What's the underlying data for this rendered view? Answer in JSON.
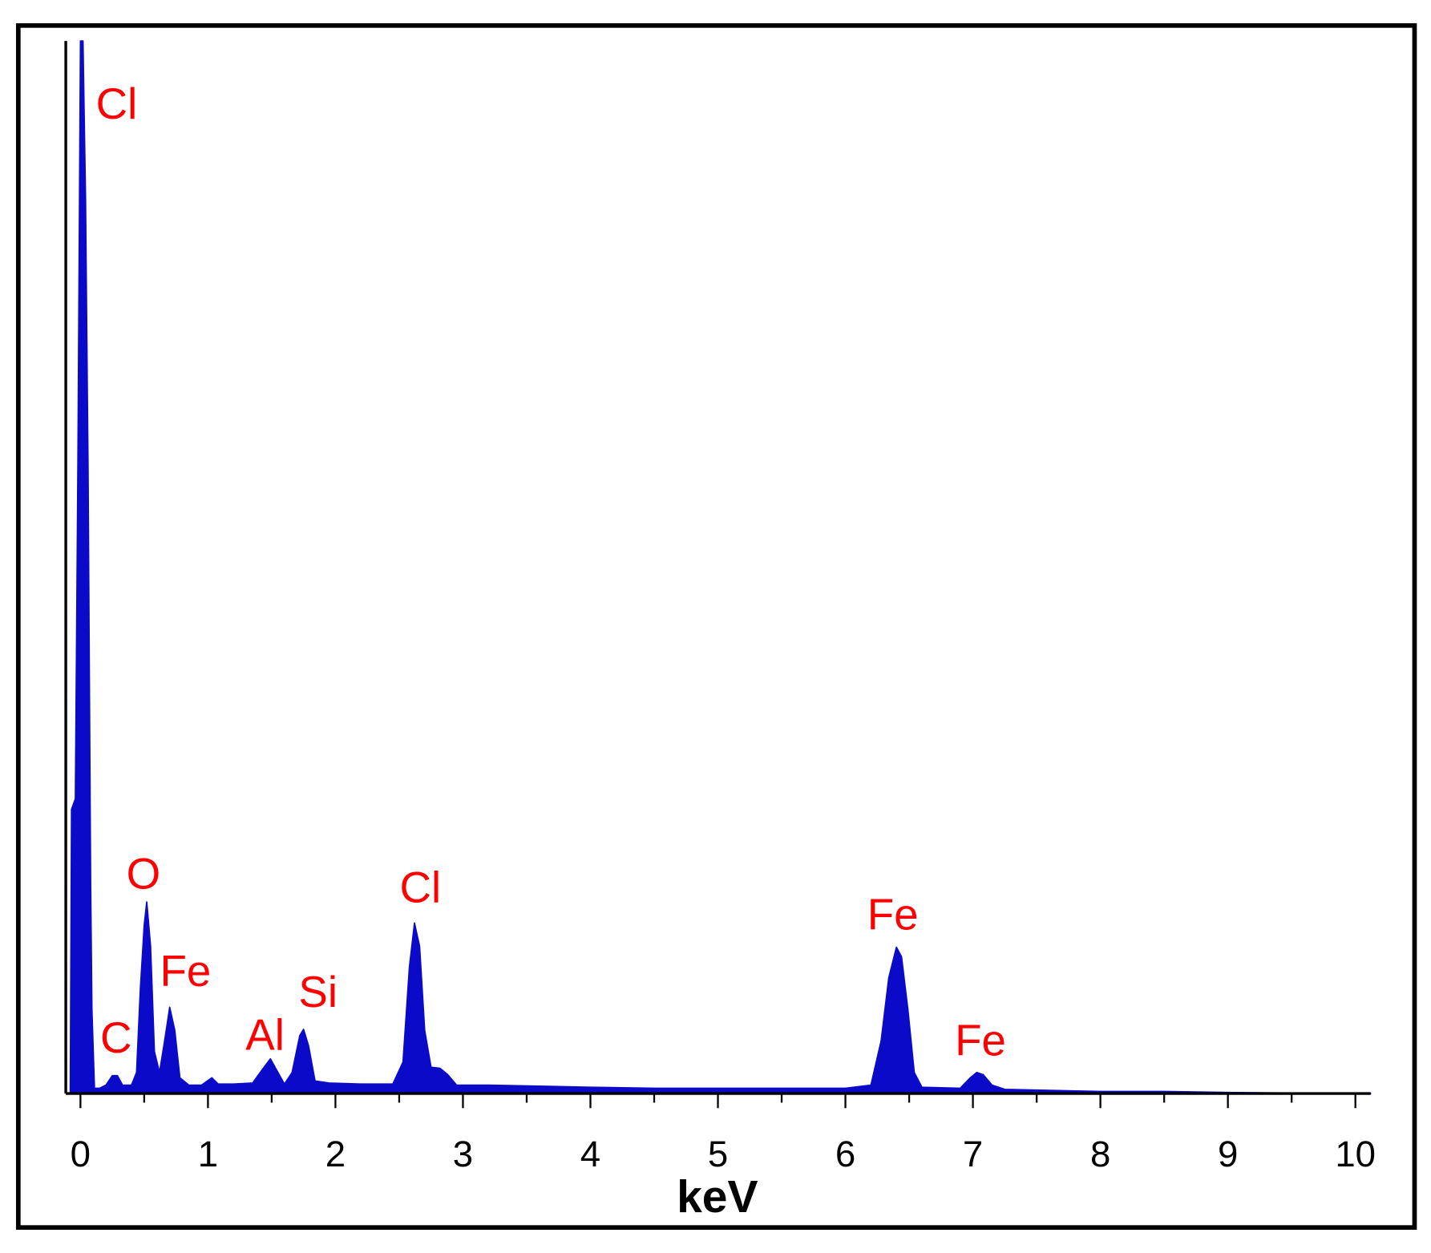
{
  "chart_data": {
    "type": "area",
    "xlabel": "keV",
    "color": "#0a0ac8",
    "annotation_color": "#ff0000",
    "xlim": [
      -0.115,
      10.12
    ],
    "ylim": [
      0,
      100
    ],
    "xticks": [
      0,
      1,
      2,
      3,
      4,
      5,
      6,
      7,
      8,
      9,
      10
    ],
    "xticks_minor": [
      0.5,
      1.5,
      2.5,
      3.5,
      4.5,
      5.5,
      6.5,
      7.5,
      8.5,
      9.5
    ],
    "x": [
      -0.1,
      -0.08,
      -0.07,
      -0.04,
      -0.02,
      0.0,
      0.02,
      0.04,
      0.06,
      0.08,
      0.09,
      0.11,
      0.15,
      0.2,
      0.25,
      0.29,
      0.33,
      0.4,
      0.44,
      0.47,
      0.5,
      0.52,
      0.55,
      0.58,
      0.62,
      0.66,
      0.7,
      0.74,
      0.78,
      0.85,
      0.95,
      1.03,
      1.08,
      1.2,
      1.35,
      1.44,
      1.49,
      1.54,
      1.6,
      1.66,
      1.72,
      1.75,
      1.79,
      1.84,
      1.95,
      2.2,
      2.45,
      2.53,
      2.58,
      2.62,
      2.66,
      2.7,
      2.75,
      2.82,
      2.88,
      2.95,
      3.2,
      3.6,
      4.0,
      4.5,
      5.0,
      5.5,
      6.0,
      6.2,
      6.28,
      6.34,
      6.4,
      6.44,
      6.49,
      6.54,
      6.6,
      6.9,
      6.98,
      7.03,
      7.08,
      7.15,
      7.25,
      7.6,
      8.0,
      8.5,
      9.0,
      9.5,
      10.12
    ],
    "values": [
      0,
      0,
      27,
      28,
      60,
      100,
      100,
      85,
      59,
      20,
      8,
      0.5,
      0.5,
      0.8,
      1.7,
      1.7,
      0.8,
      0.8,
      2,
      10,
      16,
      18.2,
      14,
      4,
      2,
      5,
      8.2,
      6,
      1.5,
      0.8,
      0.8,
      1.5,
      0.9,
      0.9,
      1.0,
      2.5,
      3.3,
      2.2,
      0.9,
      2,
      5.5,
      6.1,
      4.5,
      1.2,
      1.0,
      0.9,
      0.9,
      3,
      12,
      16.2,
      14,
      6,
      2.5,
      2.4,
      1.8,
      0.8,
      0.8,
      0.7,
      0.6,
      0.5,
      0.5,
      0.5,
      0.5,
      0.8,
      5,
      11,
      13.9,
      13,
      8,
      2,
      0.6,
      0.5,
      1.5,
      2,
      1.8,
      0.8,
      0.4,
      0.3,
      0.2,
      0.2,
      0.1,
      0.05,
      0
    ],
    "annotations": [
      {
        "text": "Cl"
      },
      {
        "text": "O"
      },
      {
        "text": "Fe"
      },
      {
        "text": "C"
      },
      {
        "text": "Al"
      },
      {
        "text": "Si"
      },
      {
        "text": "Cl"
      },
      {
        "text": "Fe"
      },
      {
        "text": "Fe"
      }
    ]
  }
}
